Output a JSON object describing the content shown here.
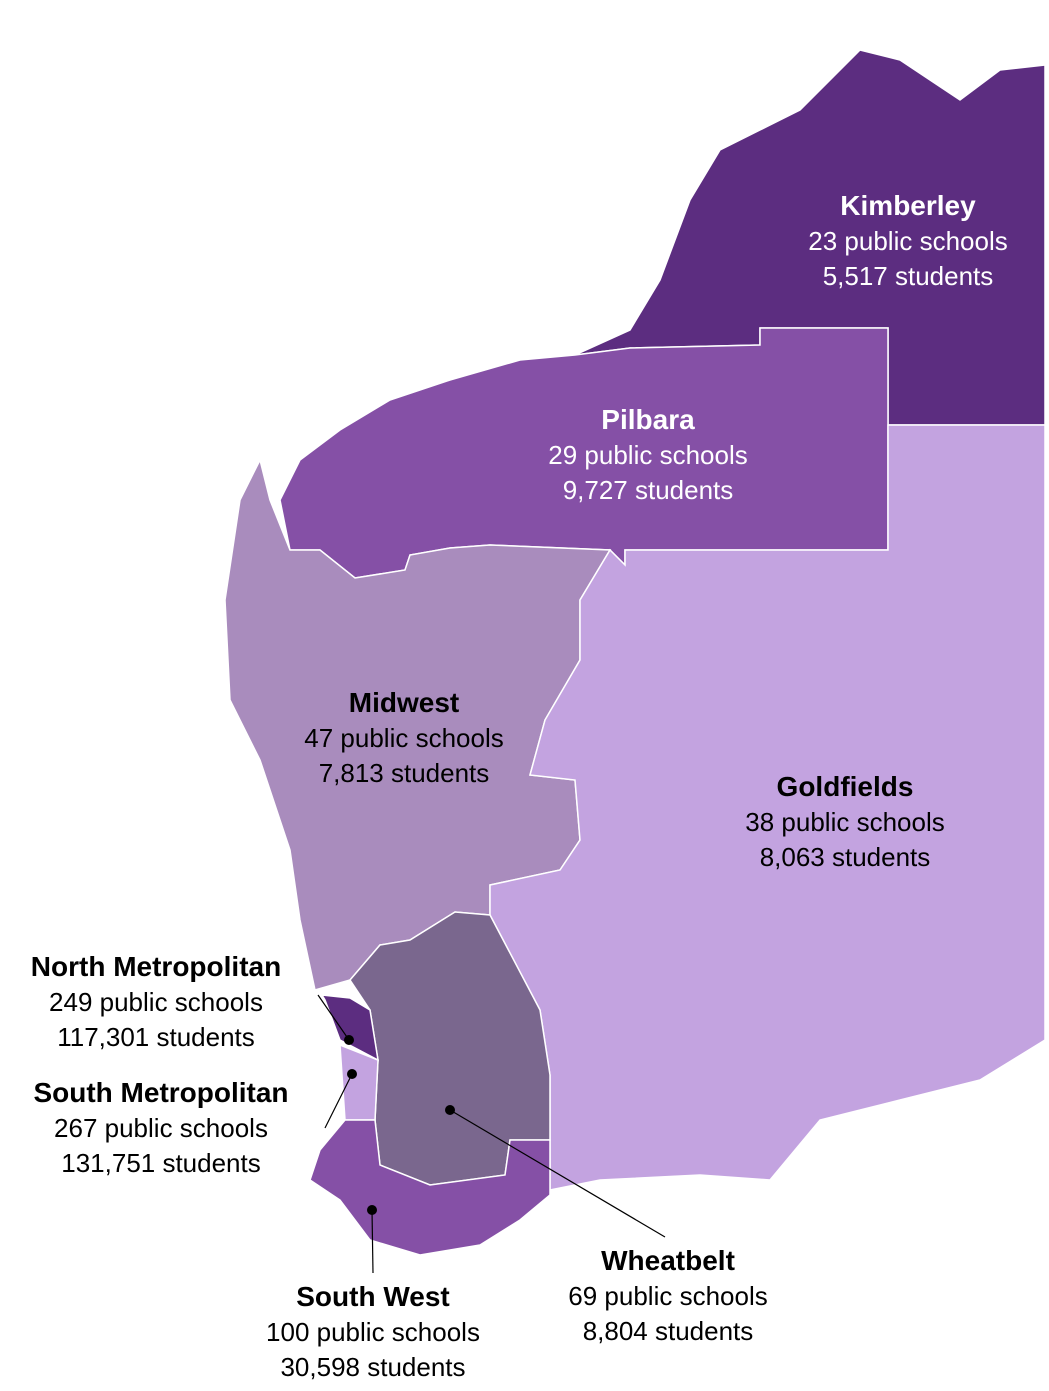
{
  "regions": [
    {
      "name": "Kimberley",
      "schools": "23 public schools",
      "students": "5,517 students"
    },
    {
      "name": "Pilbara",
      "schools": "29 public schools",
      "students": "9,727 students"
    },
    {
      "name": "Midwest",
      "schools": "47 public schools",
      "students": "7,813 students"
    },
    {
      "name": "Goldfields",
      "schools": "38 public schools",
      "students": "8,063 students"
    },
    {
      "name": "North Metropolitan",
      "schools": "249 public schools",
      "students": "117,301 students"
    },
    {
      "name": "South Metropolitan",
      "schools": "267 public schools",
      "students": "131,751 students"
    },
    {
      "name": "Wheatbelt",
      "schools": "69 public schools",
      "students": "8,804 students"
    },
    {
      "name": "South West",
      "schools": "100 public schools",
      "students": "30,598 students"
    }
  ]
}
